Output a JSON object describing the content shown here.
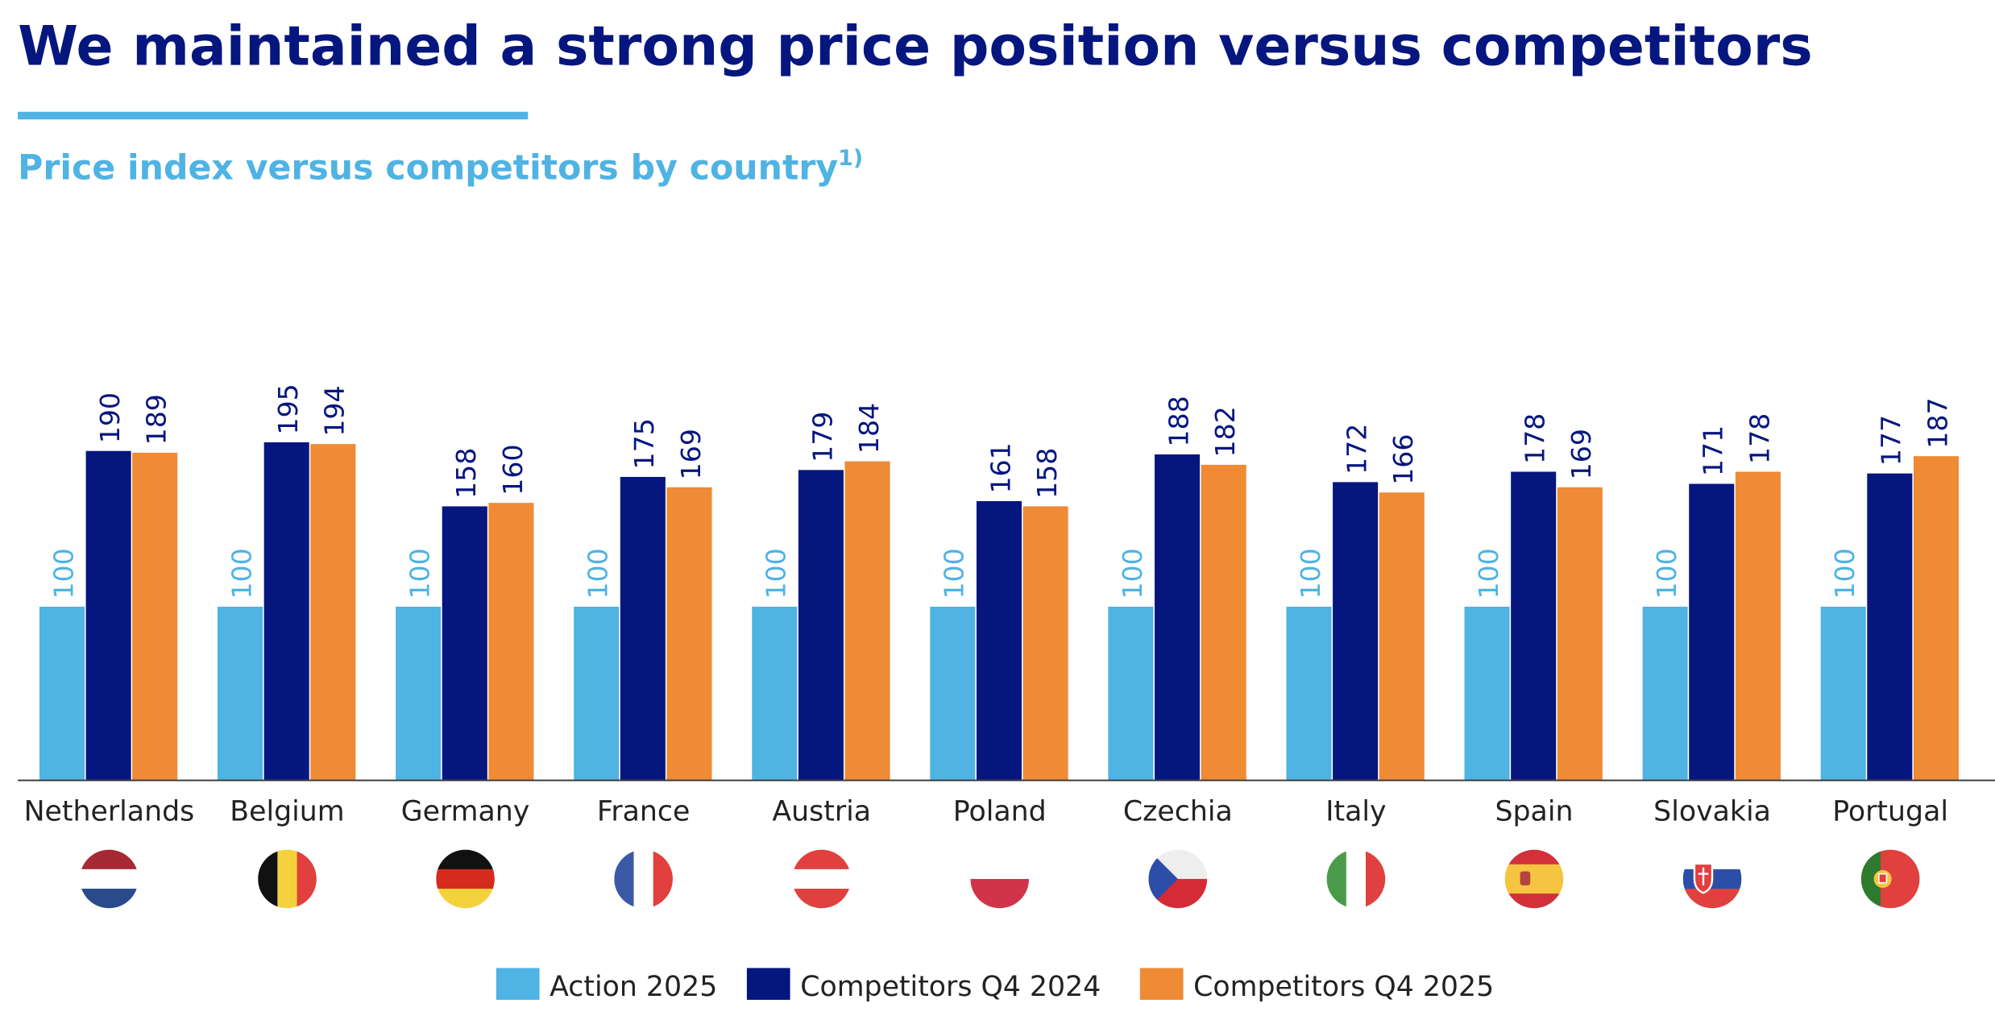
{
  "header": {
    "title": "We maintained a strong price position versus competitors",
    "subtitle": "Price index versus competitors by country",
    "subtitle_footnote": "1)"
  },
  "colors": {
    "title": "#06167f",
    "accent": "#4fb3e3",
    "action": "#4fb3e3",
    "q4_2024": "#06167f",
    "q4_2025": "#ef8a35"
  },
  "chart_data": {
    "type": "bar",
    "title": "Price index versus competitors by country",
    "xlabel": "",
    "ylabel": "",
    "ylim": [
      0,
      210
    ],
    "grid": false,
    "legend_position": "bottom",
    "categories": [
      "Netherlands",
      "Belgium",
      "Germany",
      "France",
      "Austria",
      "Poland",
      "Czechia",
      "Italy",
      "Spain",
      "Slovakia",
      "Portugal"
    ],
    "series": [
      {
        "name": "Action 2025",
        "color": "#4fb3e3",
        "values": [
          100,
          100,
          100,
          100,
          100,
          100,
          100,
          100,
          100,
          100,
          100
        ]
      },
      {
        "name": "Competitors Q4 2024",
        "color": "#06167f",
        "values": [
          190,
          195,
          158,
          175,
          179,
          161,
          188,
          172,
          178,
          171,
          177
        ]
      },
      {
        "name": "Competitors Q4 2025",
        "color": "#ef8a35",
        "values": [
          189,
          194,
          160,
          169,
          184,
          158,
          182,
          166,
          169,
          178,
          187
        ]
      }
    ]
  },
  "flags": [
    {
      "country": "Netherlands",
      "icon": "netherlands-flag-icon",
      "dir": "h",
      "stripes": [
        "#a52a35",
        "#ffffff",
        "#2a4a8c"
      ]
    },
    {
      "country": "Belgium",
      "icon": "belgium-flag-icon",
      "dir": "v",
      "stripes": [
        "#111111",
        "#f5d23c",
        "#e0403e"
      ]
    },
    {
      "country": "Germany",
      "icon": "germany-flag-icon",
      "dir": "h",
      "stripes": [
        "#111111",
        "#d52b1e",
        "#f5d23c"
      ]
    },
    {
      "country": "France",
      "icon": "france-flag-icon",
      "dir": "v",
      "stripes": [
        "#3b5aa6",
        "#ffffff",
        "#e0403e"
      ]
    },
    {
      "country": "Austria",
      "icon": "austria-flag-icon",
      "dir": "h",
      "stripes": [
        "#e0403e",
        "#ffffff",
        "#e0403e"
      ]
    },
    {
      "country": "Poland",
      "icon": "poland-flag-icon",
      "dir": "h",
      "stripes": [
        "#ffffff",
        "#d1344a"
      ]
    },
    {
      "country": "Czechia",
      "icon": "czechia-flag-icon",
      "dir": "h",
      "stripes": [
        "#eeeeee",
        "#d52b36"
      ],
      "triangle": "#2b4ea8"
    },
    {
      "country": "Italy",
      "icon": "italy-flag-icon",
      "dir": "v",
      "stripes": [
        "#4a9a4a",
        "#ffffff",
        "#e0403e"
      ]
    },
    {
      "country": "Spain",
      "icon": "spain-flag-icon",
      "dir": "h",
      "stripes": [
        "#d2303a",
        "#f5c542",
        "#f5c542",
        "#d2303a"
      ]
    },
    {
      "country": "Slovakia",
      "icon": "slovakia-flag-icon",
      "dir": "h",
      "stripes": [
        "#ffffff",
        "#2b4ea8",
        "#e0403e"
      ]
    },
    {
      "country": "Portugal",
      "icon": "portugal-flag-icon",
      "dir": "v",
      "stripes": [
        "#2d7a2d",
        "#e0403e",
        "#e0403e"
      ]
    }
  ]
}
